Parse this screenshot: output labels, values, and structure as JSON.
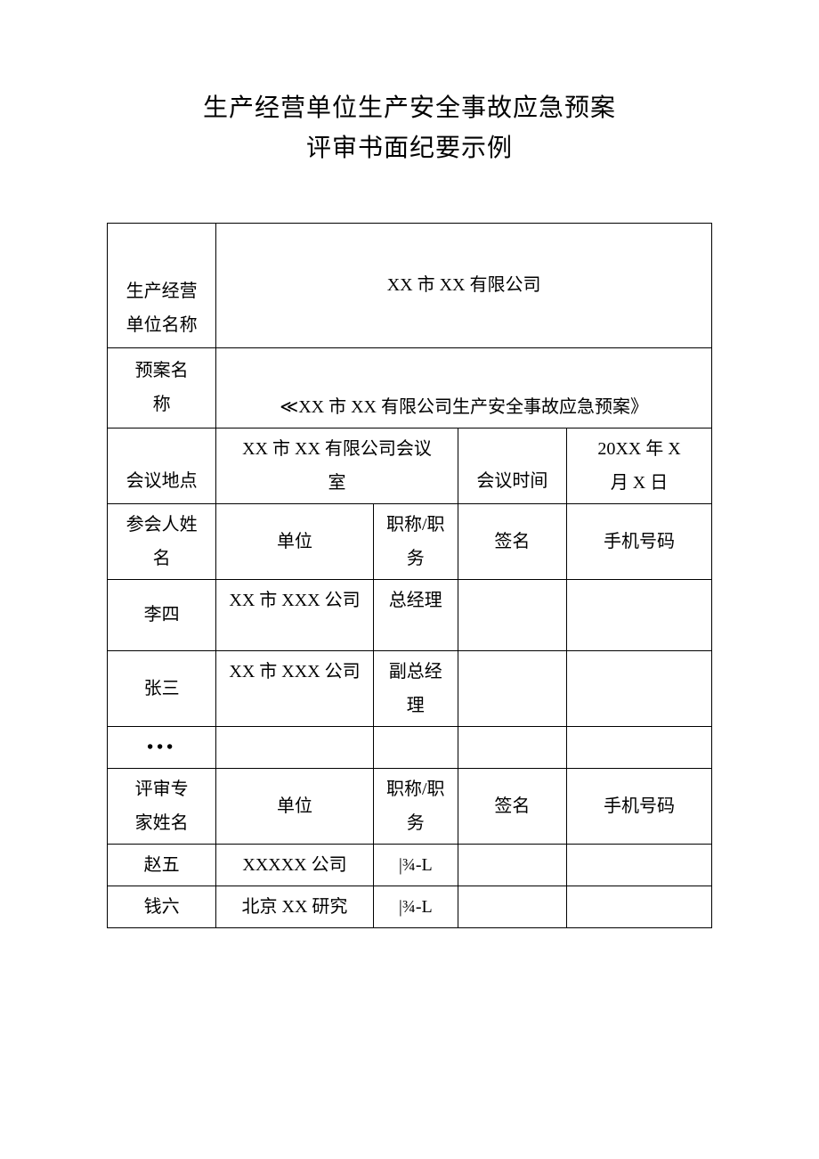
{
  "title": {
    "line1": "生产经营单位生产安全事故应急预案",
    "line2": "评审书面纪要示例"
  },
  "table": {
    "labels": {
      "company_name": "生产经营\n单位名称",
      "plan_name": "预案名\n称",
      "meeting_place": "会议地点",
      "meeting_time": "会议时间",
      "attendee_name": "参会人姓\n名",
      "org": "单位",
      "title_role": "职称/职\n务",
      "signature": "签名",
      "phone": "手机号码",
      "expert_name": "评审专\n家姓名"
    },
    "values": {
      "company_name": "XX 市 XX 有限公司",
      "plan_name": "≪XX 市 XX 有限公司生产安全事故应急预案》",
      "meeting_place": "XX 市 XX 有限公司会议\n室",
      "meeting_time": "20XX 年 X\n月 X 日"
    },
    "attendees": [
      {
        "name": "李四",
        "org": "XX 市 XXX 公司",
        "title": "总经理",
        "signature": "",
        "phone": ""
      },
      {
        "name": "张三",
        "org": "XX 市 XXX 公司",
        "title": "副总经\n理",
        "signature": "",
        "phone": ""
      }
    ],
    "ellipsis": "•••",
    "experts": [
      {
        "name": "赵五",
        "org": "XXXXX 公司",
        "title": "|¾-L",
        "signature": "",
        "phone": ""
      },
      {
        "name": "钱六",
        "org": "北京 XX 研究",
        "title": "|¾-L",
        "signature": "",
        "phone": ""
      }
    ]
  },
  "style": {
    "background_color": "#ffffff",
    "border_color": "#000000",
    "title_fontsize": 28,
    "cell_fontsize": 20,
    "col_widths_pct": [
      18,
      26,
      14,
      18,
      24
    ]
  }
}
